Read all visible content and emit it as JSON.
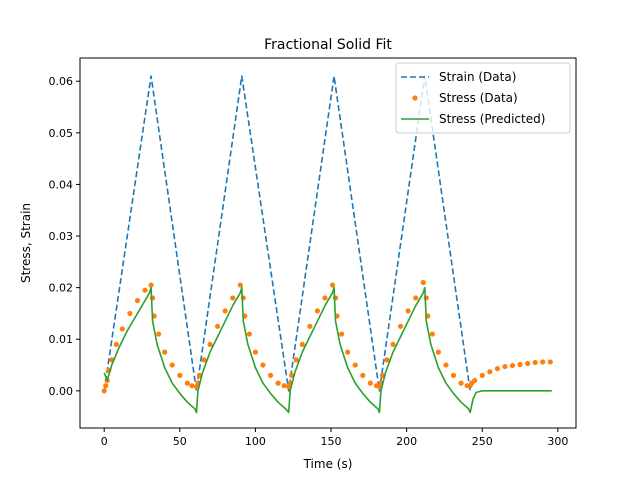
{
  "chart_data": {
    "type": "line",
    "title": "Fractional Solid Fit",
    "xlabel": "Time (s)",
    "ylabel": "Stress, Strain",
    "xlim": [
      -16,
      312
    ],
    "ylim": [
      -0.0072,
      0.0645
    ],
    "xticks": [
      0,
      50,
      100,
      150,
      200,
      250,
      300
    ],
    "yticks": [
      0.0,
      0.01,
      0.02,
      0.03,
      0.04,
      0.05,
      0.06
    ],
    "xtick_labels": [
      "0",
      "50",
      "100",
      "150",
      "200",
      "250",
      "300"
    ],
    "ytick_labels": [
      "0.00",
      "0.01",
      "0.02",
      "0.03",
      "0.04",
      "0.05",
      "0.06"
    ],
    "grid": false,
    "legend_position": "upper right",
    "series": [
      {
        "name": "Strain (Data)",
        "style": "dashed",
        "color": "#1f77b4",
        "x": [
          0,
          31,
          61,
          91,
          122,
          152,
          182,
          212,
          242
        ],
        "y": [
          0.0,
          0.061,
          0.0,
          0.061,
          0.0,
          0.061,
          0.0,
          0.061,
          0.0
        ]
      },
      {
        "name": "Stress (Data)",
        "style": "markers",
        "color": "#ff7f0e",
        "x": [
          0,
          1,
          2,
          3,
          5,
          8,
          12,
          17,
          22,
          27,
          31,
          32,
          33,
          36,
          40,
          45,
          50,
          55,
          58,
          61,
          62,
          63,
          66,
          70,
          75,
          80,
          85,
          90,
          92,
          93,
          96,
          100,
          105,
          110,
          115,
          119,
          122,
          123,
          124,
          127,
          131,
          136,
          141,
          146,
          151,
          153,
          154,
          157,
          161,
          166,
          171,
          176,
          180,
          182,
          183,
          184,
          187,
          191,
          196,
          201,
          206,
          211,
          213,
          214,
          217,
          221,
          226,
          231,
          236,
          240,
          242,
          243,
          245,
          250,
          255,
          260,
          265,
          270,
          275,
          280,
          285,
          290,
          295
        ],
        "y": [
          0.0,
          0.001,
          0.002,
          0.004,
          0.006,
          0.009,
          0.012,
          0.015,
          0.0175,
          0.0195,
          0.0205,
          0.018,
          0.0145,
          0.011,
          0.0075,
          0.005,
          0.003,
          0.0015,
          0.001,
          0.0008,
          0.0015,
          0.003,
          0.006,
          0.009,
          0.0125,
          0.0155,
          0.018,
          0.0205,
          0.018,
          0.0145,
          0.011,
          0.0075,
          0.005,
          0.003,
          0.0015,
          0.001,
          0.0008,
          0.0015,
          0.003,
          0.006,
          0.009,
          0.0125,
          0.0155,
          0.018,
          0.0205,
          0.018,
          0.0145,
          0.011,
          0.0075,
          0.005,
          0.003,
          0.0015,
          0.001,
          0.0008,
          0.0015,
          0.003,
          0.006,
          0.009,
          0.0125,
          0.0155,
          0.018,
          0.021,
          0.018,
          0.0145,
          0.011,
          0.0075,
          0.005,
          0.003,
          0.0015,
          0.001,
          0.001,
          0.0015,
          0.002,
          0.003,
          0.0037,
          0.0043,
          0.0047,
          0.0049,
          0.0051,
          0.0053,
          0.0055,
          0.0056,
          0.0056
        ]
      },
      {
        "name": "Stress (Predicted)",
        "style": "solid",
        "color": "#2ca02c",
        "x": [
          0,
          2,
          5,
          10,
          15,
          20,
          25,
          30,
          31,
          32,
          35,
          40,
          45,
          50,
          55,
          60,
          61,
          62,
          65,
          70,
          75,
          80,
          85,
          90,
          91,
          92,
          95,
          100,
          105,
          110,
          115,
          120,
          122,
          123,
          126,
          131,
          136,
          141,
          146,
          151,
          152,
          153,
          156,
          161,
          166,
          171,
          176,
          181,
          182,
          183,
          186,
          191,
          196,
          201,
          206,
          211,
          212,
          213,
          216,
          221,
          226,
          231,
          236,
          241,
          242,
          244,
          246,
          250,
          260,
          280,
          296
        ],
        "y": [
          0.0035,
          0.002,
          0.005,
          0.0085,
          0.0115,
          0.014,
          0.0165,
          0.019,
          0.02,
          0.0135,
          0.009,
          0.0045,
          0.0015,
          -0.0005,
          -0.0022,
          -0.0035,
          -0.0042,
          0.0,
          0.0035,
          0.0075,
          0.0105,
          0.0135,
          0.0165,
          0.019,
          0.02,
          0.0135,
          0.009,
          0.0045,
          0.0015,
          -0.0005,
          -0.0022,
          -0.0035,
          -0.0042,
          0.0,
          0.0035,
          0.0075,
          0.0105,
          0.0135,
          0.0165,
          0.019,
          0.02,
          0.0135,
          0.009,
          0.0045,
          0.0015,
          -0.0005,
          -0.0022,
          -0.0035,
          -0.0042,
          0.0,
          0.0035,
          0.0075,
          0.0105,
          0.0135,
          0.0165,
          0.019,
          0.02,
          0.0135,
          0.009,
          0.0045,
          0.0015,
          -0.0005,
          -0.0022,
          -0.0035,
          -0.0042,
          -0.0015,
          -0.0003,
          0.0,
          0.0,
          0.0,
          0.0
        ]
      }
    ]
  }
}
